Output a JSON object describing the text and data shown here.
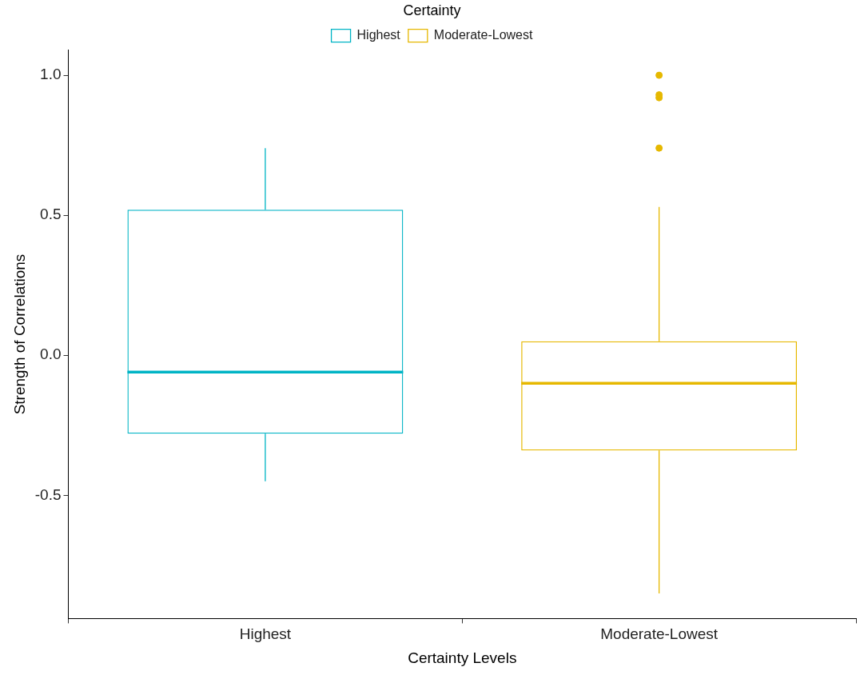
{
  "chart_data": {
    "type": "box",
    "xlabel": "Certainty Levels",
    "ylabel": "Strength of Correlations",
    "legend_title": "Certainty",
    "legend": "top",
    "categories": [
      "Highest",
      "Moderate-Lowest"
    ],
    "series": [
      {
        "name": "Highest",
        "color": "#00b4c5",
        "boxes": [
          {
            "low": -0.45,
            "q1": -0.28,
            "median": -0.06,
            "q3": 0.52,
            "high": 0.74
          },
          null
        ]
      },
      {
        "name": "Moderate-Lowest",
        "color": "#e6b800",
        "boxes": [
          null,
          {
            "low": -0.85,
            "q1": -0.34,
            "median": -0.1,
            "q3": 0.05,
            "high": 0.53,
            "outliers": [
              1.0,
              0.93,
              0.92,
              0.74
            ]
          }
        ]
      }
    ],
    "ylim": [
      -0.94,
      1.09
    ],
    "yticks": [
      -0.5,
      {
        "value": 0,
        "label": "0.0"
      },
      0.5,
      {
        "value": 1,
        "label": "1.0"
      }
    ],
    "grid": false
  }
}
